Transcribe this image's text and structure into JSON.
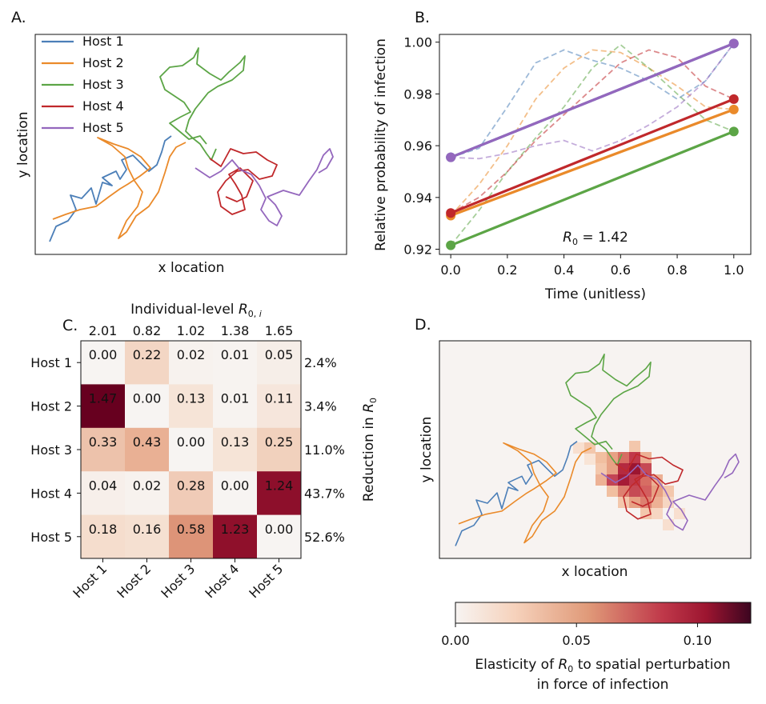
{
  "panels": {
    "a": {
      "label": "A.",
      "xlabel": "x location",
      "ylabel": "y location"
    },
    "b": {
      "label": "B.",
      "xlabel": "Time (unitless)",
      "ylabel": "Relative probability of infection",
      "annotation": "R0 = 1.42"
    },
    "c": {
      "label": "C.",
      "top_title": "Individual-level R0,i",
      "right_label": "Reduction in R0"
    },
    "d": {
      "label": "D.",
      "xlabel": "x location",
      "ylabel": "y location"
    }
  },
  "colorbar": {
    "label_line1": "Elasticity of R0 to spatial perturbation",
    "label_line2": "in force of infection",
    "ticks": [
      "0.00",
      "0.05",
      "0.10"
    ],
    "tick_values": [
      0.0,
      0.05,
      0.1
    ],
    "range": [
      0.0,
      0.122
    ]
  },
  "hosts": [
    {
      "name": "Host 1",
      "color": "#4c7fb8"
    },
    {
      "name": "Host 2",
      "color": "#ea8a2a"
    },
    {
      "name": "Host 3",
      "color": "#5ca546"
    },
    {
      "name": "Host 4",
      "color": "#c0282b"
    },
    {
      "name": "Host 5",
      "color": "#9467bd"
    }
  ],
  "chart_data": [
    {
      "type": "line",
      "panel": "A",
      "xlabel": "x location",
      "ylabel": "y location",
      "legend": [
        "Host 1",
        "Host 2",
        "Host 3",
        "Host 4",
        "Host 5"
      ],
      "legend_position": "top-left",
      "ticks": "none"
    },
    {
      "type": "line",
      "panel": "B",
      "xlabel": "Time (unitless)",
      "ylabel": "Relative probability of infection",
      "xlim": [
        -0.04,
        1.06
      ],
      "ylim": [
        0.918,
        1.003
      ],
      "xticks": [
        "0.0",
        "0.2",
        "0.4",
        "0.6",
        "0.8",
        "1.0"
      ],
      "xtick_values": [
        0.0,
        0.2,
        0.4,
        0.6,
        0.8,
        1.0
      ],
      "yticks": [
        "0.92",
        "0.94",
        "0.96",
        "0.98",
        "1.00"
      ],
      "ytick_values": [
        0.92,
        0.94,
        0.96,
        0.98,
        1.0
      ],
      "solid_series": [
        {
          "name": "Host 1",
          "x": [
            0,
            1
          ],
          "y": [
            0.9555,
            0.9995
          ]
        },
        {
          "name": "Host 2",
          "x": [
            0,
            1
          ],
          "y": [
            0.933,
            0.974
          ]
        },
        {
          "name": "Host 3",
          "x": [
            0,
            1
          ],
          "y": [
            0.9215,
            0.9655
          ]
        },
        {
          "name": "Host 4",
          "x": [
            0,
            1
          ],
          "y": [
            0.934,
            0.978
          ]
        },
        {
          "name": "Host 5",
          "x": [
            0,
            1
          ],
          "y": [
            0.9555,
            0.9995
          ]
        }
      ],
      "dashed_series": [
        {
          "name": "Host 1",
          "x": [
            0,
            0.1,
            0.2,
            0.3,
            0.4,
            0.5,
            0.6,
            0.7,
            0.8,
            0.9,
            1.0
          ],
          "y": [
            0.9555,
            0.959,
            0.975,
            0.992,
            0.997,
            0.993,
            0.99,
            0.985,
            0.978,
            0.985,
            0.9995
          ]
        },
        {
          "name": "Host 2",
          "x": [
            0,
            0.1,
            0.2,
            0.3,
            0.4,
            0.5,
            0.6,
            0.7,
            0.8,
            0.9,
            1.0
          ],
          "y": [
            0.933,
            0.945,
            0.96,
            0.978,
            0.99,
            0.997,
            0.996,
            0.99,
            0.983,
            0.975,
            0.974
          ]
        },
        {
          "name": "Host 3",
          "x": [
            0,
            0.1,
            0.2,
            0.3,
            0.4,
            0.5,
            0.6,
            0.7,
            0.8,
            0.9,
            1.0
          ],
          "y": [
            0.9215,
            0.935,
            0.95,
            0.963,
            0.975,
            0.99,
            0.999,
            0.99,
            0.98,
            0.97,
            0.9655
          ]
        },
        {
          "name": "Host 4",
          "x": [
            0,
            0.1,
            0.2,
            0.3,
            0.4,
            0.5,
            0.6,
            0.7,
            0.8,
            0.9,
            1.0
          ],
          "y": [
            0.934,
            0.94,
            0.95,
            0.962,
            0.972,
            0.982,
            0.992,
            0.997,
            0.994,
            0.983,
            0.978
          ]
        },
        {
          "name": "Host 5",
          "x": [
            0,
            0.1,
            0.2,
            0.3,
            0.4,
            0.5,
            0.6,
            0.7,
            0.8,
            0.9,
            1.0
          ],
          "y": [
            0.9555,
            0.955,
            0.957,
            0.96,
            0.962,
            0.958,
            0.962,
            0.968,
            0.975,
            0.985,
            0.9995
          ]
        }
      ],
      "annotation": "R0 = 1.42"
    },
    {
      "type": "heatmap",
      "panel": "C",
      "rows": [
        "Host 1",
        "Host 2",
        "Host 3",
        "Host 4",
        "Host 5"
      ],
      "cols": [
        "Host 1",
        "Host 2",
        "Host 3",
        "Host 4",
        "Host 5"
      ],
      "values": [
        [
          0.0,
          0.22,
          0.02,
          0.01,
          0.05
        ],
        [
          1.47,
          0.0,
          0.13,
          0.01,
          0.11
        ],
        [
          0.33,
          0.43,
          0.0,
          0.13,
          0.25
        ],
        [
          0.04,
          0.02,
          0.28,
          0.0,
          1.24
        ],
        [
          0.18,
          0.16,
          0.58,
          1.23,
          0.0
        ]
      ],
      "value_labels": [
        [
          "0.00",
          "0.22",
          "0.02",
          "0.01",
          "0.05"
        ],
        [
          "1.47",
          "0.00",
          "0.13",
          "0.01",
          "0.11"
        ],
        [
          "0.33",
          "0.43",
          "0.00",
          "0.13",
          "0.25"
        ],
        [
          "0.04",
          "0.02",
          "0.28",
          "0.00",
          "1.24"
        ],
        [
          "0.18",
          "0.16",
          "0.58",
          "1.23",
          "0.00"
        ]
      ],
      "col_totals": [
        "2.01",
        "0.82",
        "1.02",
        "1.38",
        "1.65"
      ],
      "row_reductions": [
        "2.4%",
        "3.4%",
        "11.0%",
        "43.7%",
        "52.6%"
      ],
      "top_title": "Individual-level R0,i",
      "right_label": "Reduction in R0"
    },
    {
      "type": "heatmap",
      "panel": "D",
      "xlabel": "x location",
      "ylabel": "y location",
      "colorbar_label": "Elasticity of R0 to spatial perturbation in force of infection",
      "colorbar_ticks": [
        "0.00",
        "0.05",
        "0.10"
      ]
    }
  ]
}
